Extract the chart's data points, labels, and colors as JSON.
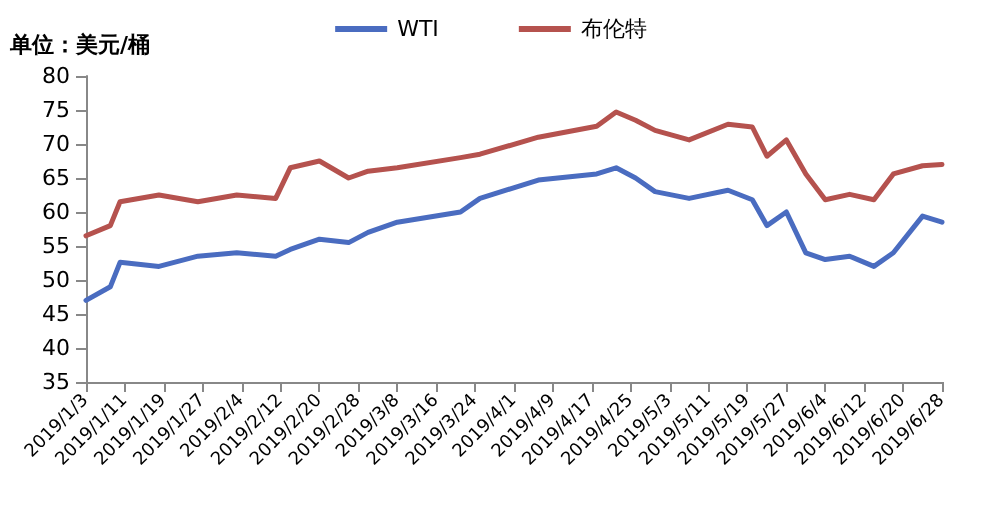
{
  "chart_data": {
    "type": "line",
    "ylabel": "单位：美元/桶",
    "x": [
      "2019-01-03",
      "2019-01-08",
      "2019-01-10",
      "2019-01-18",
      "2019-01-26",
      "2019-02-03",
      "2019-02-11",
      "2019-02-14",
      "2019-02-20",
      "2019-02-26",
      "2019-03-02",
      "2019-03-08",
      "2019-03-21",
      "2019-03-25",
      "2019-04-06",
      "2019-04-18",
      "2019-04-22",
      "2019-04-26",
      "2019-04-30",
      "2019-05-07",
      "2019-05-15",
      "2019-05-20",
      "2019-05-23",
      "2019-05-27",
      "2019-05-31",
      "2019-06-04",
      "2019-06-09",
      "2019-06-14",
      "2019-06-18",
      "2019-06-24",
      "2019-06-28"
    ],
    "series": [
      {
        "name": "WTI",
        "color": "#4a6cc0",
        "values": [
          47,
          49,
          52.6,
          52,
          53.5,
          54,
          53.5,
          54.5,
          56,
          55.5,
          57,
          58.5,
          60,
          62,
          64.7,
          65.6,
          66.5,
          65,
          63,
          62,
          63.2,
          61.8,
          58,
          60,
          54,
          53,
          53.5,
          52,
          54,
          59.4,
          58.5
        ]
      },
      {
        "name": "布伦特",
        "color": "#b5524e",
        "values": [
          56.5,
          58,
          61.5,
          62.5,
          61.5,
          62.5,
          62,
          66.5,
          67.5,
          65,
          66,
          66.5,
          68,
          68.5,
          71,
          72.6,
          74.7,
          73.5,
          72,
          70.6,
          72.9,
          72.5,
          68.2,
          70.6,
          65.6,
          61.8,
          62.6,
          61.8,
          65.6,
          66.8,
          67
        ]
      }
    ],
    "xlim": [
      "2019-01-03",
      "2019-06-28"
    ],
    "xticks": [
      {
        "value": "2019-01-03",
        "label": "2019/1/3"
      },
      {
        "value": "2019-01-11",
        "label": "2019/1/11"
      },
      {
        "value": "2019-01-19",
        "label": "2019/1/19"
      },
      {
        "value": "2019-01-27",
        "label": "2019/1/27"
      },
      {
        "value": "2019-02-04",
        "label": "2019/2/4"
      },
      {
        "value": "2019-02-12",
        "label": "2019/2/12"
      },
      {
        "value": "2019-02-20",
        "label": "2019/2/20"
      },
      {
        "value": "2019-02-28",
        "label": "2019/2/28"
      },
      {
        "value": "2019-03-08",
        "label": "2019/3/8"
      },
      {
        "value": "2019-03-16",
        "label": "2019/3/16"
      },
      {
        "value": "2019-03-24",
        "label": "2019/3/24"
      },
      {
        "value": "2019-04-01",
        "label": "2019/4/1"
      },
      {
        "value": "2019-04-09",
        "label": "2019/4/9"
      },
      {
        "value": "2019-04-17",
        "label": "2019/4/17"
      },
      {
        "value": "2019-04-25",
        "label": "2019/4/25"
      },
      {
        "value": "2019-05-03",
        "label": "2019/5/3"
      },
      {
        "value": "2019-05-11",
        "label": "2019/5/11"
      },
      {
        "value": "2019-05-19",
        "label": "2019/5/19"
      },
      {
        "value": "2019-05-27",
        "label": "2019/5/27"
      },
      {
        "value": "2019-06-04",
        "label": "2019/6/4"
      },
      {
        "value": "2019-06-12",
        "label": "2019/6/12"
      },
      {
        "value": "2019-06-20",
        "label": "2019/6/20"
      },
      {
        "value": "2019-06-28",
        "label": "2019/6/28"
      }
    ],
    "ylim": [
      35,
      80
    ],
    "yticks": [
      35,
      40,
      45,
      50,
      55,
      60,
      65,
      70,
      75,
      80
    ],
    "grid": false,
    "legend": "top",
    "marker": "none",
    "line_style": "solid"
  }
}
